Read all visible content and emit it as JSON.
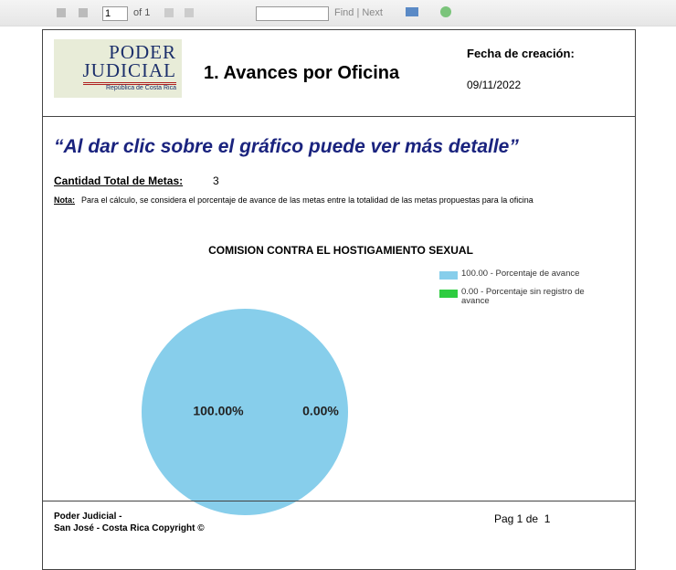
{
  "toolbar": {
    "page": "1",
    "of": "of 1",
    "find": "Find | Next"
  },
  "header": {
    "logo": {
      "line1": "PODER",
      "line2": "JUDICIAL",
      "line3": "República de Costa Rica"
    },
    "title": "1. Avances por Oficina",
    "date_label": "Fecha de creación:",
    "date": "09/11/2022"
  },
  "body": {
    "quote": "“Al dar clic sobre el gráfico puede ver más detalle”",
    "total_label": "Cantidad Total de Metas:",
    "total": "3",
    "note_label": "Nota:",
    "note": "Para el cálculo, se considera el porcentaje de avance  de las metas entre la totalidad de las metas propuestas para la oficina"
  },
  "chart_data": {
    "type": "pie",
    "title": "COMISION CONTRA EL HOSTIGAMIENTO SEXUAL",
    "categories": [
      "100.00 - Porcentaje de avance",
      "0.00 - Porcentaje sin registro de avance"
    ],
    "values": [
      100,
      0
    ],
    "value_labels": [
      "100.00%",
      "0.00%"
    ],
    "colors": [
      "#87ceeb",
      "#2ecc40"
    ]
  },
  "footer": {
    "line1": "Poder Judicial -",
    "line2": "San José - Costa Rica Copyright ©",
    "page": "Pag 1 de  1"
  }
}
